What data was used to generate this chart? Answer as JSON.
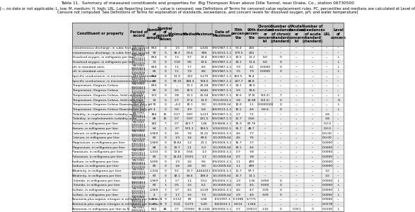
{
  "title": "Table 11.  Summary of measured constituents and properties for  Big Thompson River above Dille Tunnel, near Drake, Co., station 06730500",
  "subtitle": "[--, no data or not applicable; L, low; M, medium; H, high; LRL, Lab Reporting Level; *, value is censored; see Definitions of Terms for censored value replacement rules. PC, percentiles and medians are calculated at Level of\nCensure not computed. See Definitions of Terms for explanation of standards, exceedance, and concern levels for dissolved oxygen, pH, and water temperature]",
  "columns": [
    "Constituent or property",
    "Period of\nrecord",
    "Number\nof\nsamples",
    "Number\nof\ncensored\nvalues",
    "Minimum",
    "Median",
    "Maximum",
    "Date of\nMaximum",
    "75th\npercen-\ntile",
    "90th\npercen-\ntile",
    "Chronic\nstandard\nor\nconcern\nlvl",
    "Number of\nexceedances\nof chronic\nstandard\n(standard)",
    "Acute\nstandard\nor\nconcern\nlvl",
    "Number of\nexceedances\nof acute\nstandard\n(standard)",
    "LRL",
    "Level\nof\nconcern"
  ],
  "rows": [
    [
      "Instantaneous discharge, in cubic feet per second",
      "9/8/1993-\n9/30/2013",
      "664",
      "0",
      "1.5",
      "3.93",
      "1,426",
      "9/9/1987-1-1",
      "53.4",
      "200",
      "--",
      "--",
      "--",
      "--",
      "--",
      "--"
    ],
    [
      "Instantaneous discharge, in cubic feet per second",
      "10/1/2013-\n2/15/2016",
      "99",
      "0",
      "18.3",
      "53.6",
      "590",
      "1/1/2013-1-1",
      "179.5",
      "200",
      "--",
      "--",
      "--",
      "--",
      "--",
      "--"
    ],
    [
      "Dissolved oxygen, in milligrams per liter",
      "9/8/1993-\n9/30/2013",
      "664",
      "0",
      "7.3",
      "9.7",
      "13.4",
      "9/9/1987-1-1",
      "10.5",
      "11.3",
      "6.0",
      "0",
      "--",
      "--",
      "--",
      "L"
    ],
    [
      "Dissolved oxygen, in milligrams per liter",
      "10/1/2013-\n2/15/2016",
      "71",
      "0",
      "7.19",
      "9.6",
      "13.6",
      "9/9/1987-1-1",
      "10.1",
      "11.4",
      "6.0",
      "0",
      "--",
      "--",
      "--",
      "L"
    ],
    [
      "pH, in standard units",
      "9/8/1993-\n9/30/2013",
      "664",
      "0",
      "7.1",
      "7.7",
      "8.5",
      "9/9/1987-1-1",
      "7.9",
      "8.1",
      "0.0000",
      "0",
      "--",
      "--",
      "--",
      "L"
    ],
    [
      "pH, in standard units",
      "10/1/2013-\n2/15/2016",
      "66",
      "0",
      "7.1",
      "7.9",
      "8.6",
      "9/9/1987-1-1",
      "7.5",
      "7.9",
      "0.0000",
      "0",
      "--",
      "--",
      "--",
      "L"
    ],
    [
      "Specific conductance, in microsiemens per centimeter",
      "9/8/1993-\n9/30/2013",
      "664",
      "0",
      "51.9",
      "213",
      "1,170",
      "9/9/1987-1-1",
      "265.5",
      "78.4",
      "--",
      "--",
      "--",
      "--",
      "--",
      "--"
    ],
    [
      "Specific conductance, in microsiemens per centimeter",
      "10/1/2013-\n2/15/2016",
      "80",
      "0",
      "58.10",
      "188.4",
      "758.0",
      "9/9/1987-1-1",
      "247.7",
      "88.8",
      "--",
      "--",
      "--",
      "--",
      "--",
      "--"
    ],
    [
      "Temperature, Degrees Celsius",
      "9/8/1993-\n9/30/2013",
      "664",
      "0",
      "--",
      "11.1",
      "25.04",
      "9/9/1987-1-1",
      "14.1",
      "18.0",
      "--",
      "--",
      "--",
      "--",
      "--",
      "--"
    ],
    [
      "Temperature, Degrees Celsius",
      "10/1/2013-\n2/15/2016",
      "80",
      "0",
      "0.5",
      "10.5",
      "3,645",
      "9/9/1987-1-1",
      "5.5",
      "19.6",
      "--",
      "--",
      "--",
      "--",
      "--",
      "--"
    ],
    [
      "Temperature, Degrees Celsius, field collection",
      "9/8/1993-\n9/30/2013",
      "113",
      "0",
      "3.8",
      "11.1",
      "25.04",
      "6/4/1987-1-1",
      "10.5",
      "17.N",
      "(50.2)",
      "7",
      "--",
      "--",
      "--",
      "L"
    ],
    [
      "Temperature, Degrees Celsius, field collection",
      "10/1/2013-\n2/15/2016",
      "14",
      "0",
      "2.7",
      "17.4",
      "13.9",
      "7/15/2013-1",
      "3.8",
      "14.98",
      "(50.2)",
      "0",
      "--",
      "--",
      "--",
      "H"
    ],
    [
      "Temperature, Degrees Celsius Downstream daily pH",
      "9/8/1993-\n9/30/2013",
      "70",
      "0",
      "--4.0",
      "10.1",
      "9.0",
      "1/1/2009-64",
      "10.0",
      "1.1",
      "0.0000000",
      "0",
      "--",
      "--",
      "--",
      "L"
    ],
    [
      "Temperature, Degrees Celsius Downstream daily pH",
      "10/1/2013-\n2/15/2016",
      "4",
      "0",
      "0.0",
      "4.9",
      "6.4",
      "4/4/2013-1-1",
      "10.1",
      "4.6",
      "0.6.6",
      "0",
      "--",
      "--",
      "--",
      "L"
    ],
    [
      "Turbidity, in nephelometric turbidity units",
      "9/8/1993-\n9/30/2013",
      "184",
      "15",
      "0.17",
      "0.87",
      "1,213",
      "9/9/1987-1-1",
      "0.7",
      "7.1",
      "--",
      "--",
      "--",
      "--",
      "2.8",
      "--"
    ],
    [
      "Turbidity, in nephelometric turbidity units",
      "10/1/2013-\n2/15/2016",
      "68",
      "15",
      "0.7",
      "0.97",
      "221.5",
      "9/9/1987-1-1",
      "12.7",
      "3.66",
      "--",
      "--",
      "--",
      "--",
      "2.8",
      "--"
    ],
    [
      "Barium, in milligrams per liter",
      "9/8/1993-\n9/30/2013",
      "140",
      "7",
      "0.7",
      "423.7",
      "1.46",
      "1/3/4668-1-1",
      "35.9",
      "80.76",
      "--",
      "--",
      "--",
      "--",
      "0.2.0",
      "--"
    ],
    [
      "Barium, in milligrams per liter",
      "10/1/2013-\n2/15/2016",
      "64",
      "1",
      "0.*",
      "575.1",
      "104.5",
      "V/24/2012-1",
      "35.7",
      "48.7",
      "--",
      "--",
      "--",
      "--",
      "0.0.0",
      "--"
    ],
    [
      "Calcium, in milligrams per liter",
      "9/8/1993-\n9/30/2013",
      "1,969",
      "0",
      "2.6",
      "7.6",
      "13.21",
      "1/9/2003-3-1",
      "4.6",
      "7.7",
      "--",
      "--",
      "--",
      "--",
      "0.0.00",
      "--"
    ],
    [
      "Calcium, in milligrams per liter",
      "10/1/2013-\n2/15/2016",
      "60",
      "0",
      "1.9",
      "1.6",
      "89.6",
      "1/1/2009-64",
      "4.6",
      "7.6",
      "--",
      "--",
      "--",
      "--",
      "0.0.00",
      "--"
    ],
    [
      "Magnesium, in milligrams per liter",
      "9/8/1993-\n9/30/2013",
      "1,969",
      "0",
      "19.82",
      "1.2",
      "21.1",
      "1/9/2003-3-1",
      "16.7",
      "3.7",
      "--",
      "--",
      "--",
      "--",
      "0.0000",
      "--"
    ],
    [
      "Magnesium, in milligrams per liter",
      "10/1/2013-\n2/15/2016",
      "68",
      "0",
      "19.7",
      "2.1",
      "5.3",
      "1/1/2009-64",
      "19.1",
      "4.6",
      "--",
      "--",
      "--",
      "--",
      "0.0000",
      "--"
    ],
    [
      "Potassium, in milligrams per liter",
      "9/8/1993-\n9/30/2013",
      "1,334",
      "0",
      "13.8",
      "0.56",
      "1.3",
      "1/9/2003-3-1",
      "0.7",
      "3.8",
      "--",
      "--",
      "--",
      "--",
      "0.0000",
      "--"
    ],
    [
      "Potassium, in milligrams per liter",
      "10/1/2013-\n2/15/2016",
      "60",
      "0",
      "14.43",
      "0.591",
      "1.7",
      "1/1/2009-64",
      "0.7",
      "3.8",
      "--",
      "--",
      "--",
      "--",
      "0.0000",
      "--"
    ],
    [
      "Sodium, in milligrams per liter",
      "9/8/1993-\n9/30/2013",
      "1,000",
      "0",
      "1.9",
      "1.6",
      "9.6",
      "1/9/2003-3-1",
      "1.1",
      "499",
      "--",
      "--",
      "--",
      "--",
      "0.0000",
      "--"
    ],
    [
      "Sodium, in milligrams per liter",
      "10/1/2013-\n2/15/2016",
      "80",
      "0",
      "1.8",
      "2.8",
      "9.0",
      "1/1/2009-64",
      "1.1",
      "499",
      "--",
      "--",
      "--",
      "--",
      "0.0000",
      "--"
    ],
    [
      "Alkalinity, in milligrams per liter",
      "9/8/1993-\n9/30/2013",
      "1,334",
      "0",
      "9.1",
      "21.7",
      "4,444411",
      "1/9/2003-3-1",
      "11.7",
      "97.7",
      "--",
      "--",
      "--",
      "--",
      "1.0",
      "--"
    ],
    [
      "Alkalinity, in milligrams per liter",
      "10/1/2013-\n2/15/2016",
      "60",
      "0",
      "18.1",
      "64.6",
      "198.0",
      "1/1/2009-64",
      "13.7",
      "13.1",
      "--",
      "--",
      "--",
      "--",
      "1.0",
      "--"
    ],
    [
      "Chloride, in milligrams per liter",
      "9/8/1993-\n9/30/2013",
      "1,969",
      "1",
      "0.*",
      "1.1",
      "0.52",
      "1/9/2003-3-1",
      "1.9",
      "1.36",
      "0.000",
      "0",
      "--",
      "--",
      "0.0000",
      "L"
    ],
    [
      "Chloride, in milligrams per liter",
      "10/1/2013-\n2/15/2016",
      "60",
      "1",
      "0.5",
      "1.5",
      "6.1",
      "1/1/2009-64",
      "2.9",
      "4.5",
      "0.000",
      "0",
      "--",
      "--",
      "0.0000",
      "L"
    ],
    [
      "Sulfate, in milligrams per liter",
      "9/8/1993-\n9/30/2013",
      "1,969",
      "7",
      "0.*",
      "4.5",
      "1,529",
      "1/9/2003-3-1",
      "4.6",
      "4.7",
      "3.09",
      "0",
      "--",
      "--",
      "0.0000",
      "L"
    ],
    [
      "Sulfate, in milligrams per liter",
      "10/1/2013-\n2/15/2016",
      "4",
      "0",
      "1.7",
      "3.5",
      "7.3",
      "1/1/2009-64",
      "2.9",
      "4.6",
      "3.09",
      "0",
      "--",
      "--",
      "0.0000",
      "L"
    ],
    [
      "Ammonia plus organic nitrogen in milligrams per liter as N",
      "9/8/1993-\n9/30/2013",
      "100",
      "9",
      "0.132",
      "83",
      "0.48",
      "1/3/1997-1",
      "E.1998",
      "6.77%",
      "--",
      "--",
      "--",
      "--",
      "0.0000",
      "--"
    ],
    [
      "Ammonia plus organic nitrogen in milligrams per liter as N",
      "10/1/2013-\n2/15/2016",
      "60",
      "9",
      "0.14",
      "0.273",
      "5.49",
      "1/4/2013-1",
      "0.614",
      "1.344",
      "--",
      "--",
      "--",
      "--",
      "0.0178",
      "--"
    ],
    [
      "Ammonia, in milligrams per liter as N",
      "9/8/1993-\n9/30/2013",
      "664",
      "48",
      "0.7",
      "0.0000",
      "10.1344",
      "1/9/2003-3-1",
      "0.7",
      "0.0013",
      "2.16",
      "0",
      "0.351",
      "0",
      "0.0100",
      "L"
    ]
  ],
  "bg_color": "#ffffff",
  "header_bg": "#cccccc",
  "alt_row_bg": "#e8e8e8",
  "border_color": "#555555",
  "text_color": "#000000",
  "title_fontsize": 4.2,
  "subtitle_fontsize": 3.8,
  "header_fontsize": 3.5,
  "cell_fontsize": 3.2
}
